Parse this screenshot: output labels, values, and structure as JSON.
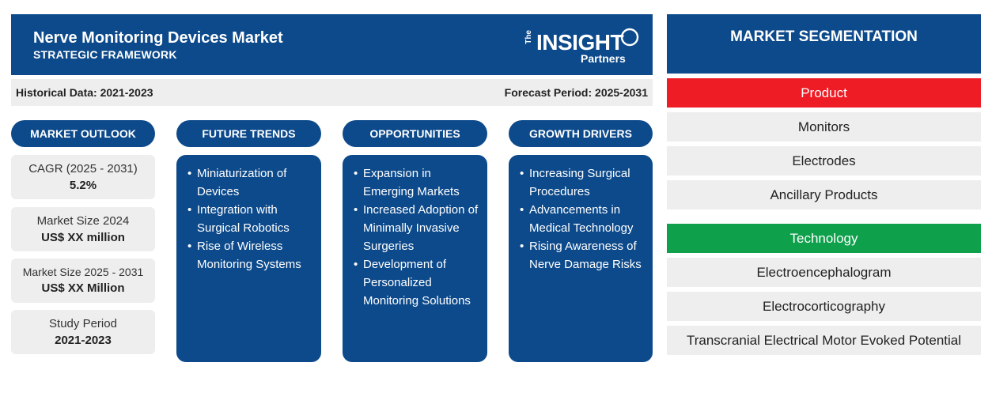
{
  "header": {
    "title": "Nerve Monitoring Devices Market",
    "subtitle": "STRATEGIC FRAMEWORK",
    "logo": {
      "the": "The",
      "insight": "INSIGHT",
      "partners": "Partners"
    }
  },
  "period": {
    "historical": "Historical Data: 2021-2023",
    "forecast": "Forecast Period: 2025-2031"
  },
  "columns": {
    "outlook": "MARKET OUTLOOK",
    "trends": "FUTURE TRENDS",
    "opportunities": "OPPORTUNITIES",
    "drivers": "GROWTH DRIVERS"
  },
  "outlook": [
    {
      "label": "CAGR (2025 - 2031)",
      "value": "5.2%"
    },
    {
      "label": "Market Size 2024",
      "value": "US$ XX million"
    },
    {
      "label": "Market Size 2025 - 2031",
      "value": "US$ XX Million"
    },
    {
      "label": "Study Period",
      "value": "2021-2023"
    }
  ],
  "trends": [
    "Miniaturization of Devices",
    "Integration with Surgical Robotics",
    "Rise of Wireless Monitoring Systems"
  ],
  "opportunities": [
    "Expansion in Emerging Markets",
    "Increased Adoption of Minimally Invasive Surgeries",
    "Development of Personalized Monitoring Solutions"
  ],
  "drivers": [
    "Increasing Surgical Procedures",
    "Advancements in Medical Technology",
    "Rising Awareness of Nerve Damage Risks"
  ],
  "segmentation": {
    "title": "MARKET SEGMENTATION",
    "product": {
      "label": "Product",
      "color": "#ee1c25",
      "items": [
        "Monitors",
        "Electrodes",
        "Ancillary Products"
      ]
    },
    "technology": {
      "label": "Technology",
      "color": "#0ea04b",
      "items": [
        "Electroencephalogram",
        "Electrocorticography",
        "Transcranial Electrical Motor Evoked Potential"
      ]
    }
  }
}
